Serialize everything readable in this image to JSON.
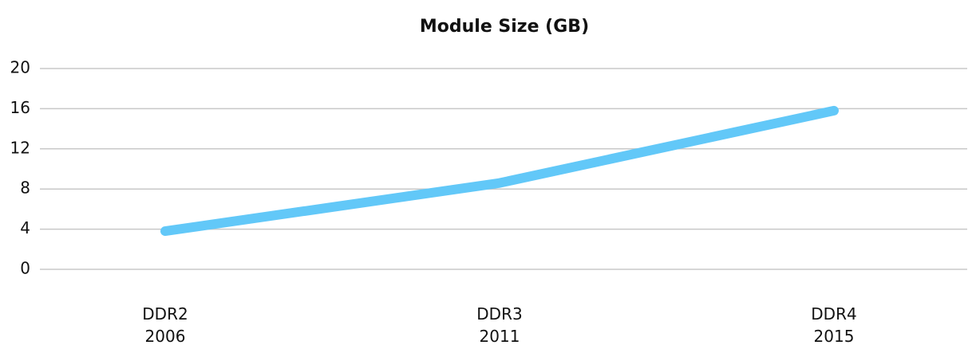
{
  "chart_data": {
    "type": "line",
    "title": "Module Size (GB)",
    "categories": [
      "DDR2\n2006",
      "DDR3\n2011",
      "DDR4\n2015"
    ],
    "series": [
      {
        "name": "Module Size (GB)",
        "color": "#62c8f8",
        "values": [
          3.8,
          8.6,
          15.8
        ]
      }
    ],
    "ylim": [
      0,
      20
    ],
    "yticks": [
      0,
      4,
      8,
      12,
      16,
      20
    ],
    "grid": true
  }
}
